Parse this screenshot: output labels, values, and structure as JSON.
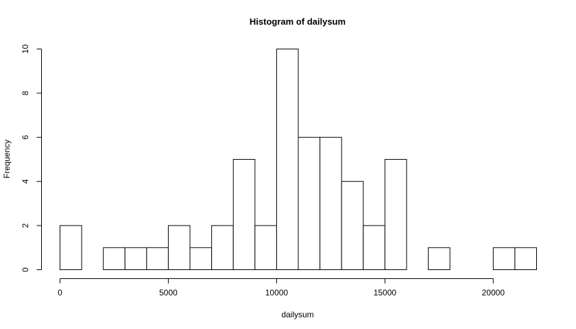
{
  "chart_data": {
    "type": "bar",
    "subtype": "histogram",
    "title": "Histogram of dailysum",
    "xlabel": "dailysum",
    "ylabel": "Frequency",
    "bin_width": 1000,
    "bin_edges": [
      0,
      1000,
      2000,
      3000,
      4000,
      5000,
      6000,
      7000,
      8000,
      9000,
      10000,
      11000,
      12000,
      13000,
      14000,
      15000,
      16000,
      17000,
      18000,
      19000,
      20000,
      21000,
      22000
    ],
    "values": [
      2,
      0,
      1,
      1,
      1,
      2,
      1,
      2,
      5,
      2,
      10,
      6,
      6,
      4,
      2,
      5,
      0,
      1,
      0,
      0,
      1,
      1
    ],
    "xlim": [
      0,
      22000
    ],
    "ylim": [
      0,
      10
    ],
    "x_ticks": [
      0,
      5000,
      10000,
      15000,
      20000
    ],
    "x_tick_labels": [
      "0",
      "5000",
      "10000",
      "15000",
      "20000"
    ],
    "y_ticks": [
      0,
      2,
      4,
      6,
      8,
      10
    ],
    "y_tick_labels": [
      "0",
      "2",
      "4",
      "6",
      "8",
      "10"
    ],
    "grid": false,
    "legend": "none",
    "colors": {
      "bar_fill": "#ffffff",
      "bar_stroke": "#000000",
      "axis": "#000000",
      "background": "#ffffff"
    }
  }
}
